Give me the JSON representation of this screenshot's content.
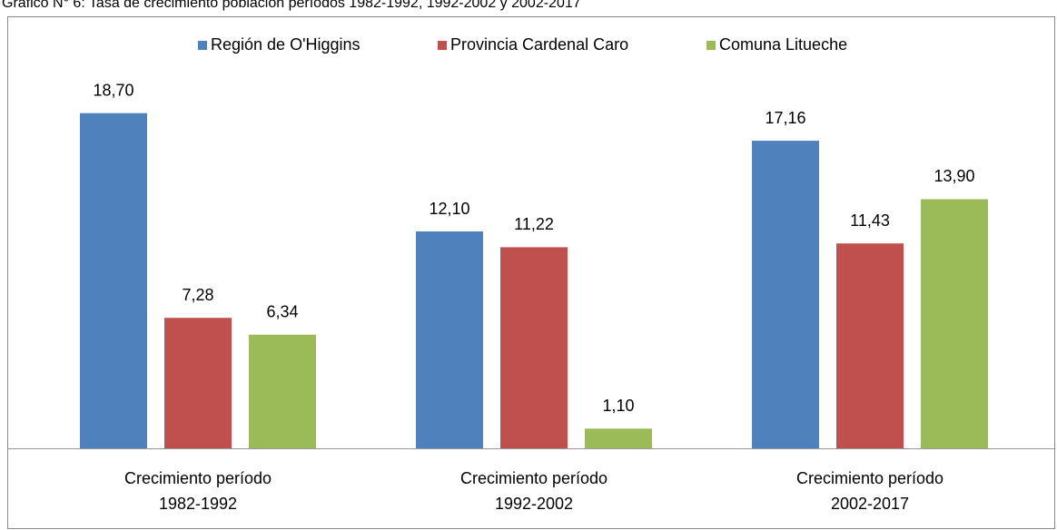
{
  "chart_data": {
    "type": "bar",
    "title": "Gráfico N° 6: Tasa de crecimiento población períodos 1982-1992, 1992-2002 y 2002-2017",
    "categories": [
      [
        "Crecimiento período",
        "1982-1992"
      ],
      [
        "Crecimiento período",
        "1992-2002"
      ],
      [
        "Crecimiento período",
        "2002-2017"
      ]
    ],
    "series": [
      {
        "name": "Región de O'Higgins",
        "color": "#4f81bd",
        "values": [
          18.7,
          12.1,
          17.16
        ],
        "value_labels": [
          "18,70",
          "12,10",
          "17,16"
        ]
      },
      {
        "name": "Provincia Cardenal Caro",
        "color": "#c0504d",
        "values": [
          7.28,
          11.22,
          11.43
        ],
        "value_labels": [
          "7,28",
          "11,22",
          "11,43"
        ]
      },
      {
        "name": "Comuna Litueche",
        "color": "#9bbb59",
        "values": [
          6.34,
          1.1,
          13.9
        ],
        "value_labels": [
          "6,34",
          "1,10",
          "13,90"
        ]
      }
    ],
    "legend": "top"
  }
}
